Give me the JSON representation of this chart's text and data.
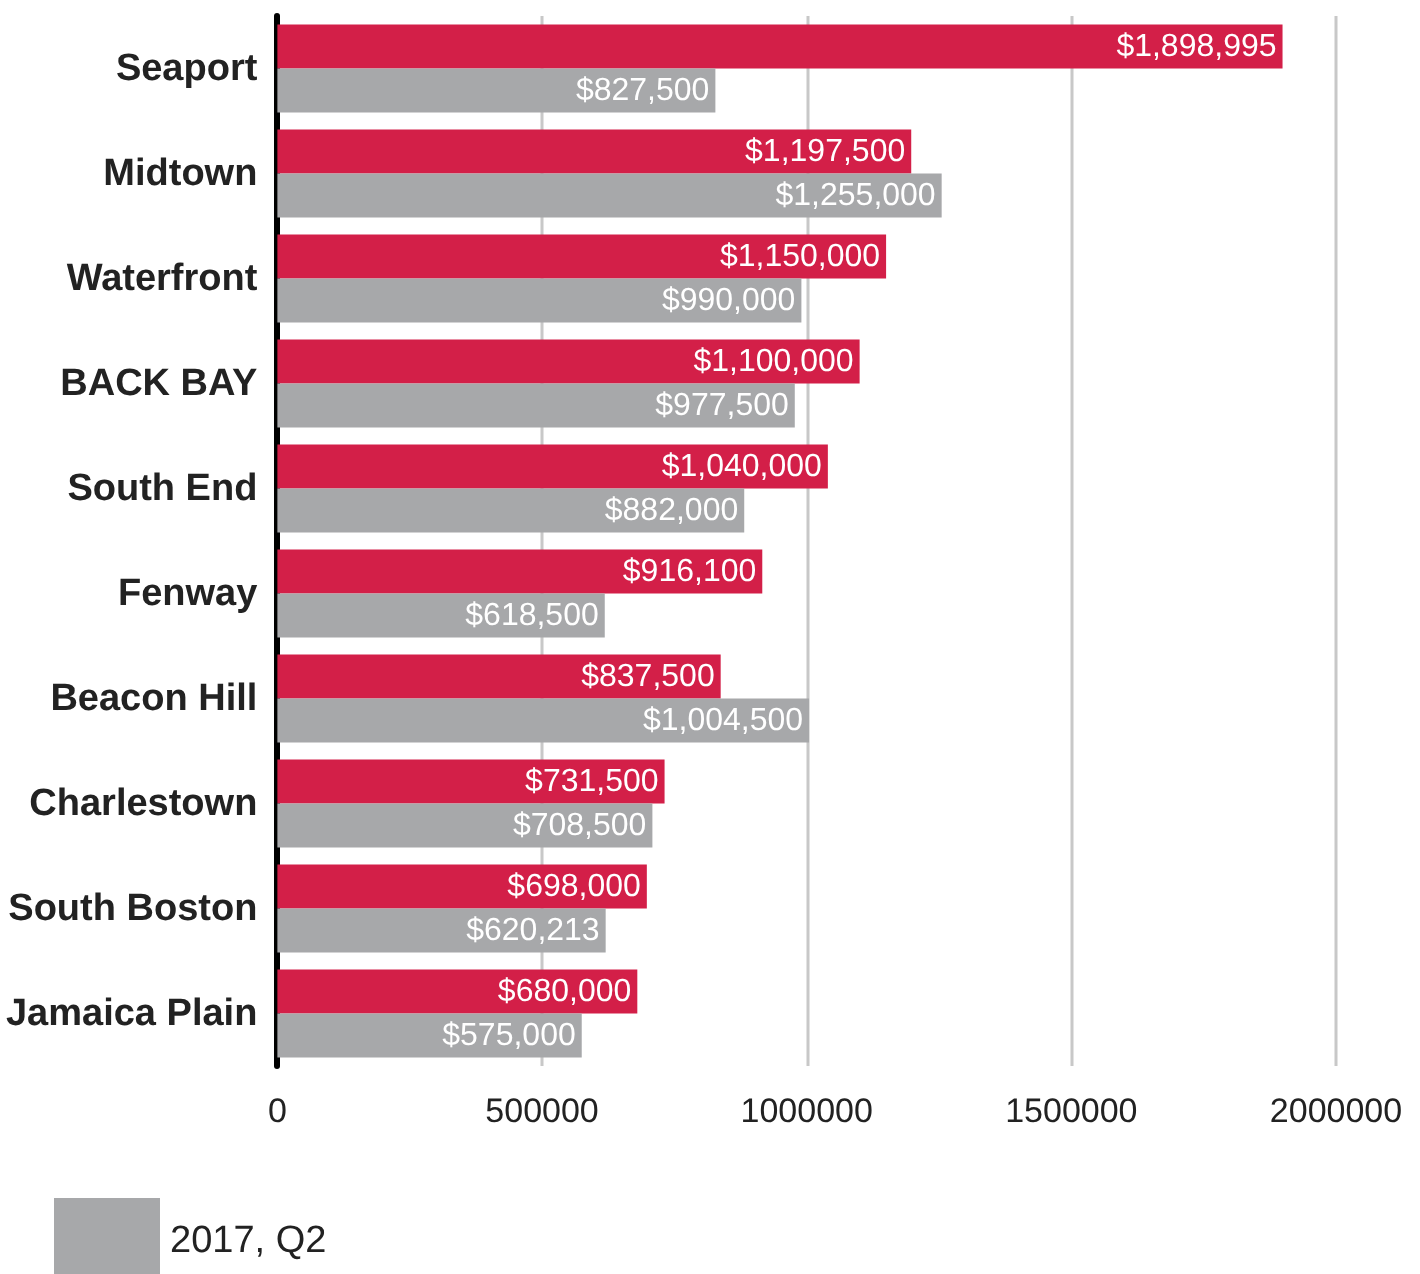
{
  "chart_data": {
    "type": "bar",
    "orientation": "horizontal",
    "categories": [
      "Seaport",
      "Midtown",
      "Waterfront",
      "BACK BAY",
      "South End",
      "Fenway",
      "Beacon Hill",
      "Charlestown",
      "South Boston",
      "Jamaica Plain"
    ],
    "series": [
      {
        "color": "#d31f48",
        "values": [
          1898995,
          1197500,
          1150000,
          1100000,
          1040000,
          916100,
          837500,
          731500,
          698000,
          680000
        ],
        "value_labels": [
          "$1,898,995",
          "$1,197,500",
          "$1,150,000",
          "$1,100,000",
          "$1,040,000",
          "$916,100",
          "$837,500",
          "$731,500",
          "$698,000",
          "$680,000"
        ]
      },
      {
        "name": "2017, Q2",
        "color": "#a7a8aa",
        "values": [
          827500,
          1255000,
          990000,
          977500,
          882000,
          618500,
          1004500,
          708500,
          620213,
          575000
        ],
        "value_labels": [
          "$827,500",
          "$1,255,000",
          "$990,000",
          "$977,500",
          "$882,000",
          "$618,500",
          "$1,004,500",
          "$708,500",
          "$620,213",
          "$575,000"
        ]
      }
    ],
    "xlim": [
      0,
      2000000
    ],
    "xticks": [
      0,
      500000,
      1000000,
      1500000,
      2000000
    ],
    "grid": "x",
    "legend": "bottom left"
  }
}
